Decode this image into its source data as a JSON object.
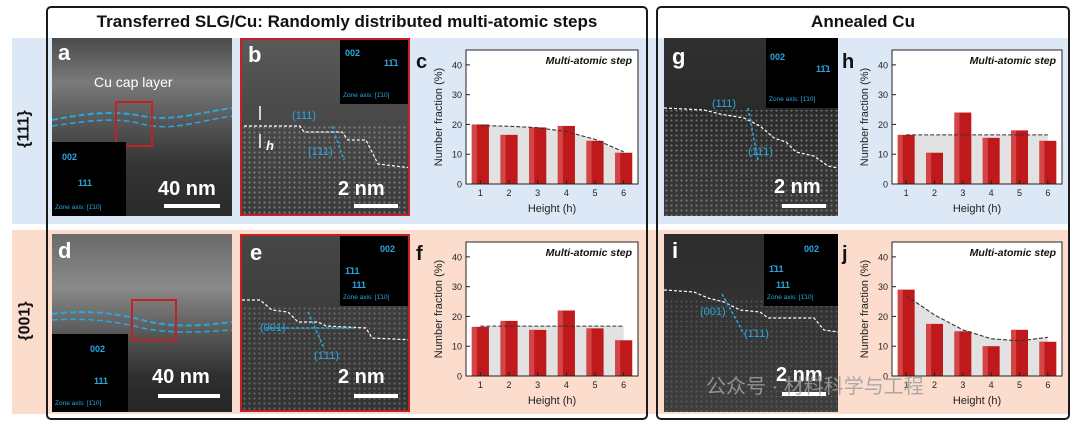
{
  "titles": {
    "left": "Transferred SLG/Cu: Randomly distributed multi-atomic steps",
    "right": "Annealed Cu"
  },
  "row_labels": {
    "top": "{111}",
    "bottom": "{001}"
  },
  "panels": {
    "a": {
      "letter": "a",
      "scale": "40 nm",
      "cap_label": "Cu cap layer",
      "inset_spots": [
        "002",
        "111"
      ],
      "zone_axis": "Zone axis: [1̄10]"
    },
    "b": {
      "letter": "b",
      "scale": "2 nm",
      "plane": "(111)",
      "plane2": "(1̄11)",
      "h_label": "h",
      "inset_spots": [
        "002",
        "11̄1"
      ],
      "zone_axis": "Zone axis: [1̄10]"
    },
    "d": {
      "letter": "d",
      "scale": "40 nm",
      "inset_spots": [
        "002",
        "111"
      ],
      "zone_axis": "Zone axis: [1̄10]"
    },
    "e": {
      "letter": "e",
      "scale": "2 nm",
      "plane": "(001)",
      "plane2": "(1̄11)",
      "inset_spots": [
        "002",
        "1̄11",
        "111"
      ],
      "zone_axis": "Zone axis: [1̄10]"
    },
    "g": {
      "letter": "g",
      "scale": "2 nm",
      "plane": "(111)",
      "plane2": "(11̄1)",
      "inset_spots": [
        "002",
        "11̄1"
      ],
      "zone_axis": "Zone axis: [1̄10]"
    },
    "i": {
      "letter": "i",
      "scale": "2 nm",
      "plane": "(001)",
      "plane2": "(1̄11)",
      "inset_spots": [
        "002",
        "1̄11",
        "111"
      ],
      "zone_axis": "Zone axis: [1̄10]"
    }
  },
  "watermark": "公众号 · 材料科学与工程",
  "colors": {
    "top_band": "#dce8f5",
    "bottom_band": "#fbdccd",
    "bar": "#c0191b",
    "blue": "#29a8e0",
    "red_frame": "#c42026"
  },
  "chart_data": [
    {
      "id": "c",
      "letter": "c",
      "type": "bar",
      "annotation": "Multi-atomic step",
      "xlabel": "Height (h)",
      "ylabel": "Number fraction (%)",
      "categories": [
        "1",
        "2",
        "3",
        "4",
        "5",
        "6"
      ],
      "values": [
        20,
        16.5,
        19,
        19.5,
        14.5,
        10.5
      ],
      "ylim": [
        0,
        45
      ],
      "yticks": [
        0,
        10,
        20,
        30,
        40
      ],
      "trend": "decreasing"
    },
    {
      "id": "f",
      "letter": "f",
      "type": "bar",
      "annotation": "Multi-atomic step",
      "xlabel": "Height (h)",
      "ylabel": "Number fraction (%)",
      "categories": [
        "1",
        "2",
        "3",
        "4",
        "5",
        "6"
      ],
      "values": [
        16.5,
        18.5,
        15.5,
        22,
        16,
        12
      ],
      "ylim": [
        0,
        45
      ],
      "yticks": [
        0,
        10,
        20,
        30,
        40
      ],
      "trend": "flat"
    },
    {
      "id": "h",
      "letter": "h",
      "type": "bar",
      "annotation": "Multi-atomic step",
      "xlabel": "Height (h)",
      "ylabel": "Number fraction (%)",
      "categories": [
        "1",
        "2",
        "3",
        "4",
        "5",
        "6"
      ],
      "values": [
        16.5,
        10.5,
        24,
        15.5,
        18,
        14.5
      ],
      "ylim": [
        0,
        45
      ],
      "yticks": [
        0,
        10,
        20,
        30,
        40
      ],
      "trend": "flat"
    },
    {
      "id": "j",
      "letter": "j",
      "type": "bar",
      "annotation": "Multi-atomic step",
      "xlabel": "Height (h)",
      "ylabel": "Number fraction (%)",
      "categories": [
        "1",
        "2",
        "3",
        "4",
        "5",
        "6"
      ],
      "values": [
        29,
        17.5,
        15,
        10,
        15.5,
        11.5
      ],
      "ylim": [
        0,
        45
      ],
      "yticks": [
        0,
        10,
        20,
        30,
        40
      ],
      "trend": "u-shape"
    }
  ]
}
